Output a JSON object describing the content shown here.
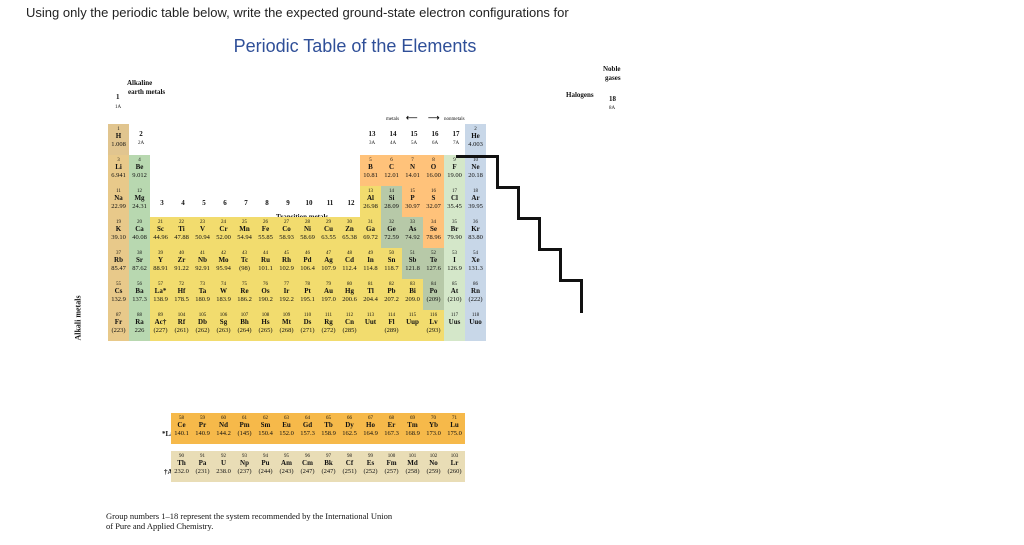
{
  "prompt": "Using only the periodic table below, write the expected ground-state electron configurations for",
  "title": "Periodic Table of the Elements",
  "labels": {
    "alkaline": "Alkaline",
    "earth_metals": "earth metals",
    "group1": "1",
    "group1a": "1A",
    "alkali": "Alkali metals",
    "noble": "Noble",
    "gases": "gases",
    "halogens": "Halogens",
    "group18": "18",
    "group8a": "8A",
    "metals": "metals",
    "nonmetals": "nonmetals",
    "transition": "Transition metals",
    "lanthanides": "*Lanthanides",
    "actinides": "†Actinides",
    "footnote1": "Group numbers 1–18 represent the system recommended by the International Union",
    "footnote2": "of Pure and Applied Chemistry."
  },
  "groups": [
    {
      "num": "2",
      "sub": "2A"
    },
    {
      "num": "3",
      "sub": ""
    },
    {
      "num": "4",
      "sub": ""
    },
    {
      "num": "5",
      "sub": ""
    },
    {
      "num": "6",
      "sub": ""
    },
    {
      "num": "7",
      "sub": ""
    },
    {
      "num": "8",
      "sub": ""
    },
    {
      "num": "9",
      "sub": ""
    },
    {
      "num": "10",
      "sub": ""
    },
    {
      "num": "11",
      "sub": ""
    },
    {
      "num": "12",
      "sub": ""
    },
    {
      "num": "13",
      "sub": "3A"
    },
    {
      "num": "14",
      "sub": "4A"
    },
    {
      "num": "15",
      "sub": "5A"
    },
    {
      "num": "16",
      "sub": "6A"
    },
    {
      "num": "17",
      "sub": "7A"
    }
  ],
  "colors": {
    "alkali": "#e8c98a",
    "alkaline": "#b8d8b0",
    "metal": "#f2dc6e",
    "metalloid": "#b7c9a8",
    "nonmetal": "#ffc27a",
    "halogen": "#d4e7c9",
    "noble": "#c8d7e8",
    "lanthanide": "#f6b94a",
    "actinide": "#e9ddb6",
    "hydrogen": "#e1c58f"
  },
  "elements": [
    [
      "1",
      "H",
      "1.008",
      1,
      1,
      "hydrogen"
    ],
    [
      "2",
      "He",
      "4.003",
      1,
      18,
      "noble"
    ],
    [
      "3",
      "Li",
      "6.941",
      2,
      1,
      "alkali"
    ],
    [
      "4",
      "Be",
      "9.012",
      2,
      2,
      "alkaline"
    ],
    [
      "5",
      "B",
      "10.81",
      2,
      13,
      "nonmetal"
    ],
    [
      "6",
      "C",
      "12.01",
      2,
      14,
      "nonmetal"
    ],
    [
      "7",
      "N",
      "14.01",
      2,
      15,
      "nonmetal"
    ],
    [
      "8",
      "O",
      "16.00",
      2,
      16,
      "nonmetal"
    ],
    [
      "9",
      "F",
      "19.00",
      2,
      17,
      "halogen"
    ],
    [
      "10",
      "Ne",
      "20.18",
      2,
      18,
      "noble"
    ],
    [
      "11",
      "Na",
      "22.99",
      3,
      1,
      "alkali"
    ],
    [
      "12",
      "Mg",
      "24.31",
      3,
      2,
      "alkaline"
    ],
    [
      "13",
      "Al",
      "26.98",
      3,
      13,
      "metal"
    ],
    [
      "14",
      "Si",
      "28.09",
      3,
      14,
      "metalloid"
    ],
    [
      "15",
      "P",
      "30.97",
      3,
      15,
      "nonmetal"
    ],
    [
      "16",
      "S",
      "32.07",
      3,
      16,
      "nonmetal"
    ],
    [
      "17",
      "Cl",
      "35.45",
      3,
      17,
      "halogen"
    ],
    [
      "18",
      "Ar",
      "39.95",
      3,
      18,
      "noble"
    ],
    [
      "19",
      "K",
      "39.10",
      4,
      1,
      "alkali"
    ],
    [
      "20",
      "Ca",
      "40.08",
      4,
      2,
      "alkaline"
    ],
    [
      "21",
      "Sc",
      "44.96",
      4,
      3,
      "metal"
    ],
    [
      "22",
      "Ti",
      "47.88",
      4,
      4,
      "metal"
    ],
    [
      "23",
      "V",
      "50.94",
      4,
      5,
      "metal"
    ],
    [
      "24",
      "Cr",
      "52.00",
      4,
      6,
      "metal"
    ],
    [
      "25",
      "Mn",
      "54.94",
      4,
      7,
      "metal"
    ],
    [
      "26",
      "Fe",
      "55.85",
      4,
      8,
      "metal"
    ],
    [
      "27",
      "Co",
      "58.93",
      4,
      9,
      "metal"
    ],
    [
      "28",
      "Ni",
      "58.69",
      4,
      10,
      "metal"
    ],
    [
      "29",
      "Cu",
      "63.55",
      4,
      11,
      "metal"
    ],
    [
      "30",
      "Zn",
      "65.38",
      4,
      12,
      "metal"
    ],
    [
      "31",
      "Ga",
      "69.72",
      4,
      13,
      "metal"
    ],
    [
      "32",
      "Ge",
      "72.59",
      4,
      14,
      "metalloid"
    ],
    [
      "33",
      "As",
      "74.92",
      4,
      15,
      "metalloid"
    ],
    [
      "34",
      "Se",
      "78.96",
      4,
      16,
      "nonmetal"
    ],
    [
      "35",
      "Br",
      "79.90",
      4,
      17,
      "halogen"
    ],
    [
      "36",
      "Kr",
      "83.80",
      4,
      18,
      "noble"
    ],
    [
      "37",
      "Rb",
      "85.47",
      5,
      1,
      "alkali"
    ],
    [
      "38",
      "Sr",
      "87.62",
      5,
      2,
      "alkaline"
    ],
    [
      "39",
      "Y",
      "88.91",
      5,
      3,
      "metal"
    ],
    [
      "40",
      "Zr",
      "91.22",
      5,
      4,
      "metal"
    ],
    [
      "41",
      "Nb",
      "92.91",
      5,
      5,
      "metal"
    ],
    [
      "42",
      "Mo",
      "95.94",
      5,
      6,
      "metal"
    ],
    [
      "43",
      "Tc",
      "(98)",
      5,
      7,
      "metal"
    ],
    [
      "44",
      "Ru",
      "101.1",
      5,
      8,
      "metal"
    ],
    [
      "45",
      "Rh",
      "102.9",
      5,
      9,
      "metal"
    ],
    [
      "46",
      "Pd",
      "106.4",
      5,
      10,
      "metal"
    ],
    [
      "47",
      "Ag",
      "107.9",
      5,
      11,
      "metal"
    ],
    [
      "48",
      "Cd",
      "112.4",
      5,
      12,
      "metal"
    ],
    [
      "49",
      "In",
      "114.8",
      5,
      13,
      "metal"
    ],
    [
      "50",
      "Sn",
      "118.7",
      5,
      14,
      "metal"
    ],
    [
      "51",
      "Sb",
      "121.8",
      5,
      15,
      "metalloid"
    ],
    [
      "52",
      "Te",
      "127.6",
      5,
      16,
      "metalloid"
    ],
    [
      "53",
      "I",
      "126.9",
      5,
      17,
      "halogen"
    ],
    [
      "54",
      "Xe",
      "131.3",
      5,
      18,
      "noble"
    ],
    [
      "55",
      "Cs",
      "132.9",
      6,
      1,
      "alkali"
    ],
    [
      "56",
      "Ba",
      "137.3",
      6,
      2,
      "alkaline"
    ],
    [
      "57",
      "La*",
      "138.9",
      6,
      3,
      "metal"
    ],
    [
      "72",
      "Hf",
      "178.5",
      6,
      4,
      "metal"
    ],
    [
      "73",
      "Ta",
      "180.9",
      6,
      5,
      "metal"
    ],
    [
      "74",
      "W",
      "183.9",
      6,
      6,
      "metal"
    ],
    [
      "75",
      "Re",
      "186.2",
      6,
      7,
      "metal"
    ],
    [
      "76",
      "Os",
      "190.2",
      6,
      8,
      "metal"
    ],
    [
      "77",
      "Ir",
      "192.2",
      6,
      9,
      "metal"
    ],
    [
      "78",
      "Pt",
      "195.1",
      6,
      10,
      "metal"
    ],
    [
      "79",
      "Au",
      "197.0",
      6,
      11,
      "metal"
    ],
    [
      "80",
      "Hg",
      "200.6",
      6,
      12,
      "metal"
    ],
    [
      "81",
      "Tl",
      "204.4",
      6,
      13,
      "metal"
    ],
    [
      "82",
      "Pb",
      "207.2",
      6,
      14,
      "metal"
    ],
    [
      "83",
      "Bi",
      "209.0",
      6,
      15,
      "metal"
    ],
    [
      "84",
      "Po",
      "(209)",
      6,
      16,
      "metalloid"
    ],
    [
      "85",
      "At",
      "(210)",
      6,
      17,
      "halogen"
    ],
    [
      "86",
      "Rn",
      "(222)",
      6,
      18,
      "noble"
    ],
    [
      "87",
      "Fr",
      "(223)",
      7,
      1,
      "alkali"
    ],
    [
      "88",
      "Ra",
      "226",
      7,
      2,
      "alkaline"
    ],
    [
      "89",
      "Ac†",
      "(227)",
      7,
      3,
      "metal"
    ],
    [
      "104",
      "Rf",
      "(261)",
      7,
      4,
      "metal"
    ],
    [
      "105",
      "Db",
      "(262)",
      7,
      5,
      "metal"
    ],
    [
      "106",
      "Sg",
      "(263)",
      7,
      6,
      "metal"
    ],
    [
      "107",
      "Bh",
      "(264)",
      7,
      7,
      "metal"
    ],
    [
      "108",
      "Hs",
      "(265)",
      7,
      8,
      "metal"
    ],
    [
      "109",
      "Mt",
      "(268)",
      7,
      9,
      "metal"
    ],
    [
      "110",
      "Ds",
      "(271)",
      7,
      10,
      "metal"
    ],
    [
      "111",
      "Rg",
      "(272)",
      7,
      11,
      "metal"
    ],
    [
      "112",
      "Cn",
      "(285)",
      7,
      12,
      "metal"
    ],
    [
      "113",
      "Uut",
      "",
      7,
      13,
      "metal"
    ],
    [
      "114",
      "Fl",
      "(289)",
      7,
      14,
      "metal"
    ],
    [
      "115",
      "Uup",
      "",
      7,
      15,
      "metal"
    ],
    [
      "116",
      "Lv",
      "(293)",
      7,
      16,
      "metal"
    ],
    [
      "117",
      "Uus",
      "",
      7,
      17,
      "halogen"
    ],
    [
      "118",
      "Uuo",
      "",
      7,
      18,
      "noble"
    ],
    [
      "58",
      "Ce",
      "140.1",
      9,
      4,
      "lanthanide"
    ],
    [
      "59",
      "Pr",
      "140.9",
      9,
      5,
      "lanthanide"
    ],
    [
      "60",
      "Nd",
      "144.2",
      9,
      6,
      "lanthanide"
    ],
    [
      "61",
      "Pm",
      "(145)",
      9,
      7,
      "lanthanide"
    ],
    [
      "62",
      "Sm",
      "150.4",
      9,
      8,
      "lanthanide"
    ],
    [
      "63",
      "Eu",
      "152.0",
      9,
      9,
      "lanthanide"
    ],
    [
      "64",
      "Gd",
      "157.3",
      9,
      10,
      "lanthanide"
    ],
    [
      "65",
      "Tb",
      "158.9",
      9,
      11,
      "lanthanide"
    ],
    [
      "66",
      "Dy",
      "162.5",
      9,
      12,
      "lanthanide"
    ],
    [
      "67",
      "Ho",
      "164.9",
      9,
      13,
      "lanthanide"
    ],
    [
      "68",
      "Er",
      "167.3",
      9,
      14,
      "lanthanide"
    ],
    [
      "69",
      "Tm",
      "168.9",
      9,
      15,
      "lanthanide"
    ],
    [
      "70",
      "Yb",
      "173.0",
      9,
      16,
      "lanthanide"
    ],
    [
      "71",
      "Lu",
      "175.0",
      9,
      17,
      "lanthanide"
    ],
    [
      "90",
      "Th",
      "232.0",
      10,
      4,
      "actinide"
    ],
    [
      "91",
      "Pa",
      "(231)",
      10,
      5,
      "actinide"
    ],
    [
      "92",
      "U",
      "238.0",
      10,
      6,
      "actinide"
    ],
    [
      "93",
      "Np",
      "(237)",
      10,
      7,
      "actinide"
    ],
    [
      "94",
      "Pu",
      "(244)",
      10,
      8,
      "actinide"
    ],
    [
      "95",
      "Am",
      "(243)",
      10,
      9,
      "actinide"
    ],
    [
      "96",
      "Cm",
      "(247)",
      10,
      10,
      "actinide"
    ],
    [
      "97",
      "Bk",
      "(247)",
      10,
      11,
      "actinide"
    ],
    [
      "98",
      "Cf",
      "(251)",
      10,
      12,
      "actinide"
    ],
    [
      "99",
      "Es",
      "(252)",
      10,
      13,
      "actinide"
    ],
    [
      "100",
      "Fm",
      "(257)",
      10,
      14,
      "actinide"
    ],
    [
      "101",
      "Md",
      "(258)",
      10,
      15,
      "actinide"
    ],
    [
      "102",
      "No",
      "(259)",
      10,
      16,
      "actinide"
    ],
    [
      "103",
      "Lr",
      "(260)",
      10,
      17,
      "actinide"
    ]
  ]
}
